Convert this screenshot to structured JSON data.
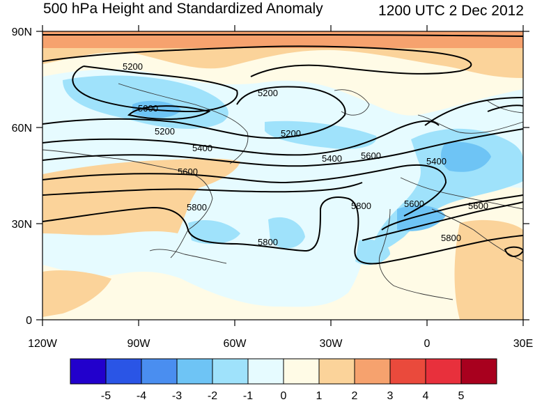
{
  "title_left": "500 hPa Height and Standardized Anomaly",
  "title_right": "1200 UTC 2 Dec 2012",
  "lon_labels": [
    "120W",
    "90W",
    "60W",
    "30W",
    "0",
    "30E"
  ],
  "lat_labels": [
    "90N",
    "60N",
    "30N",
    "0"
  ],
  "contour_labels": [
    "5200",
    "5000",
    "5200",
    "5200",
    "5200",
    "5400",
    "5400",
    "5600",
    "5600",
    "5400",
    "5800",
    "5800",
    "5600",
    "5600",
    "5800",
    "5800"
  ],
  "colorbar": {
    "labels": [
      "-5",
      "-4",
      "-3",
      "-2",
      "-1",
      "0",
      "1",
      "2",
      "3",
      "4",
      "5"
    ],
    "colors": [
      "#2200cc",
      "#2a55e6",
      "#4a8ef0",
      "#6ec4f5",
      "#9fe2fb",
      "#e6fbff",
      "#fffbe6",
      "#fbd39a",
      "#f6a26e",
      "#ea4a3c",
      "#e8303c",
      "#a8001e"
    ]
  }
}
